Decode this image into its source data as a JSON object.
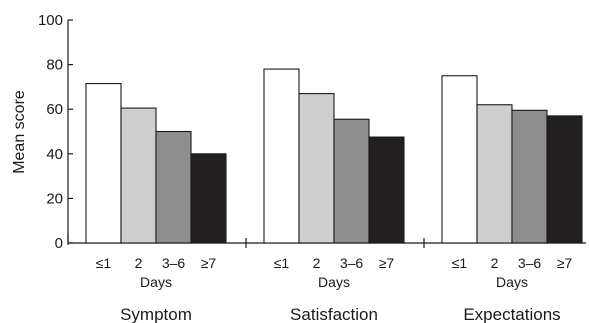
{
  "chart_data": {
    "type": "bar",
    "ylabel": "Mean score",
    "ylim": [
      0,
      100
    ],
    "yticks": [
      0,
      20,
      40,
      60,
      80,
      100
    ],
    "grid": false,
    "categories": [
      "≤1",
      "2",
      "3–6",
      "≥7"
    ],
    "category_axis_label": "Days",
    "category_colors": [
      "#ffffff",
      "#cfcfcf",
      "#8e8e8e",
      "#231f20"
    ],
    "groups": [
      {
        "name": "Symptom",
        "values": [
          71.5,
          60.5,
          50,
          40
        ]
      },
      {
        "name": "Satisfaction",
        "values": [
          78,
          67,
          55.5,
          47.5
        ]
      },
      {
        "name": "Expectations",
        "values": [
          75,
          62,
          59.5,
          57
        ]
      }
    ]
  }
}
